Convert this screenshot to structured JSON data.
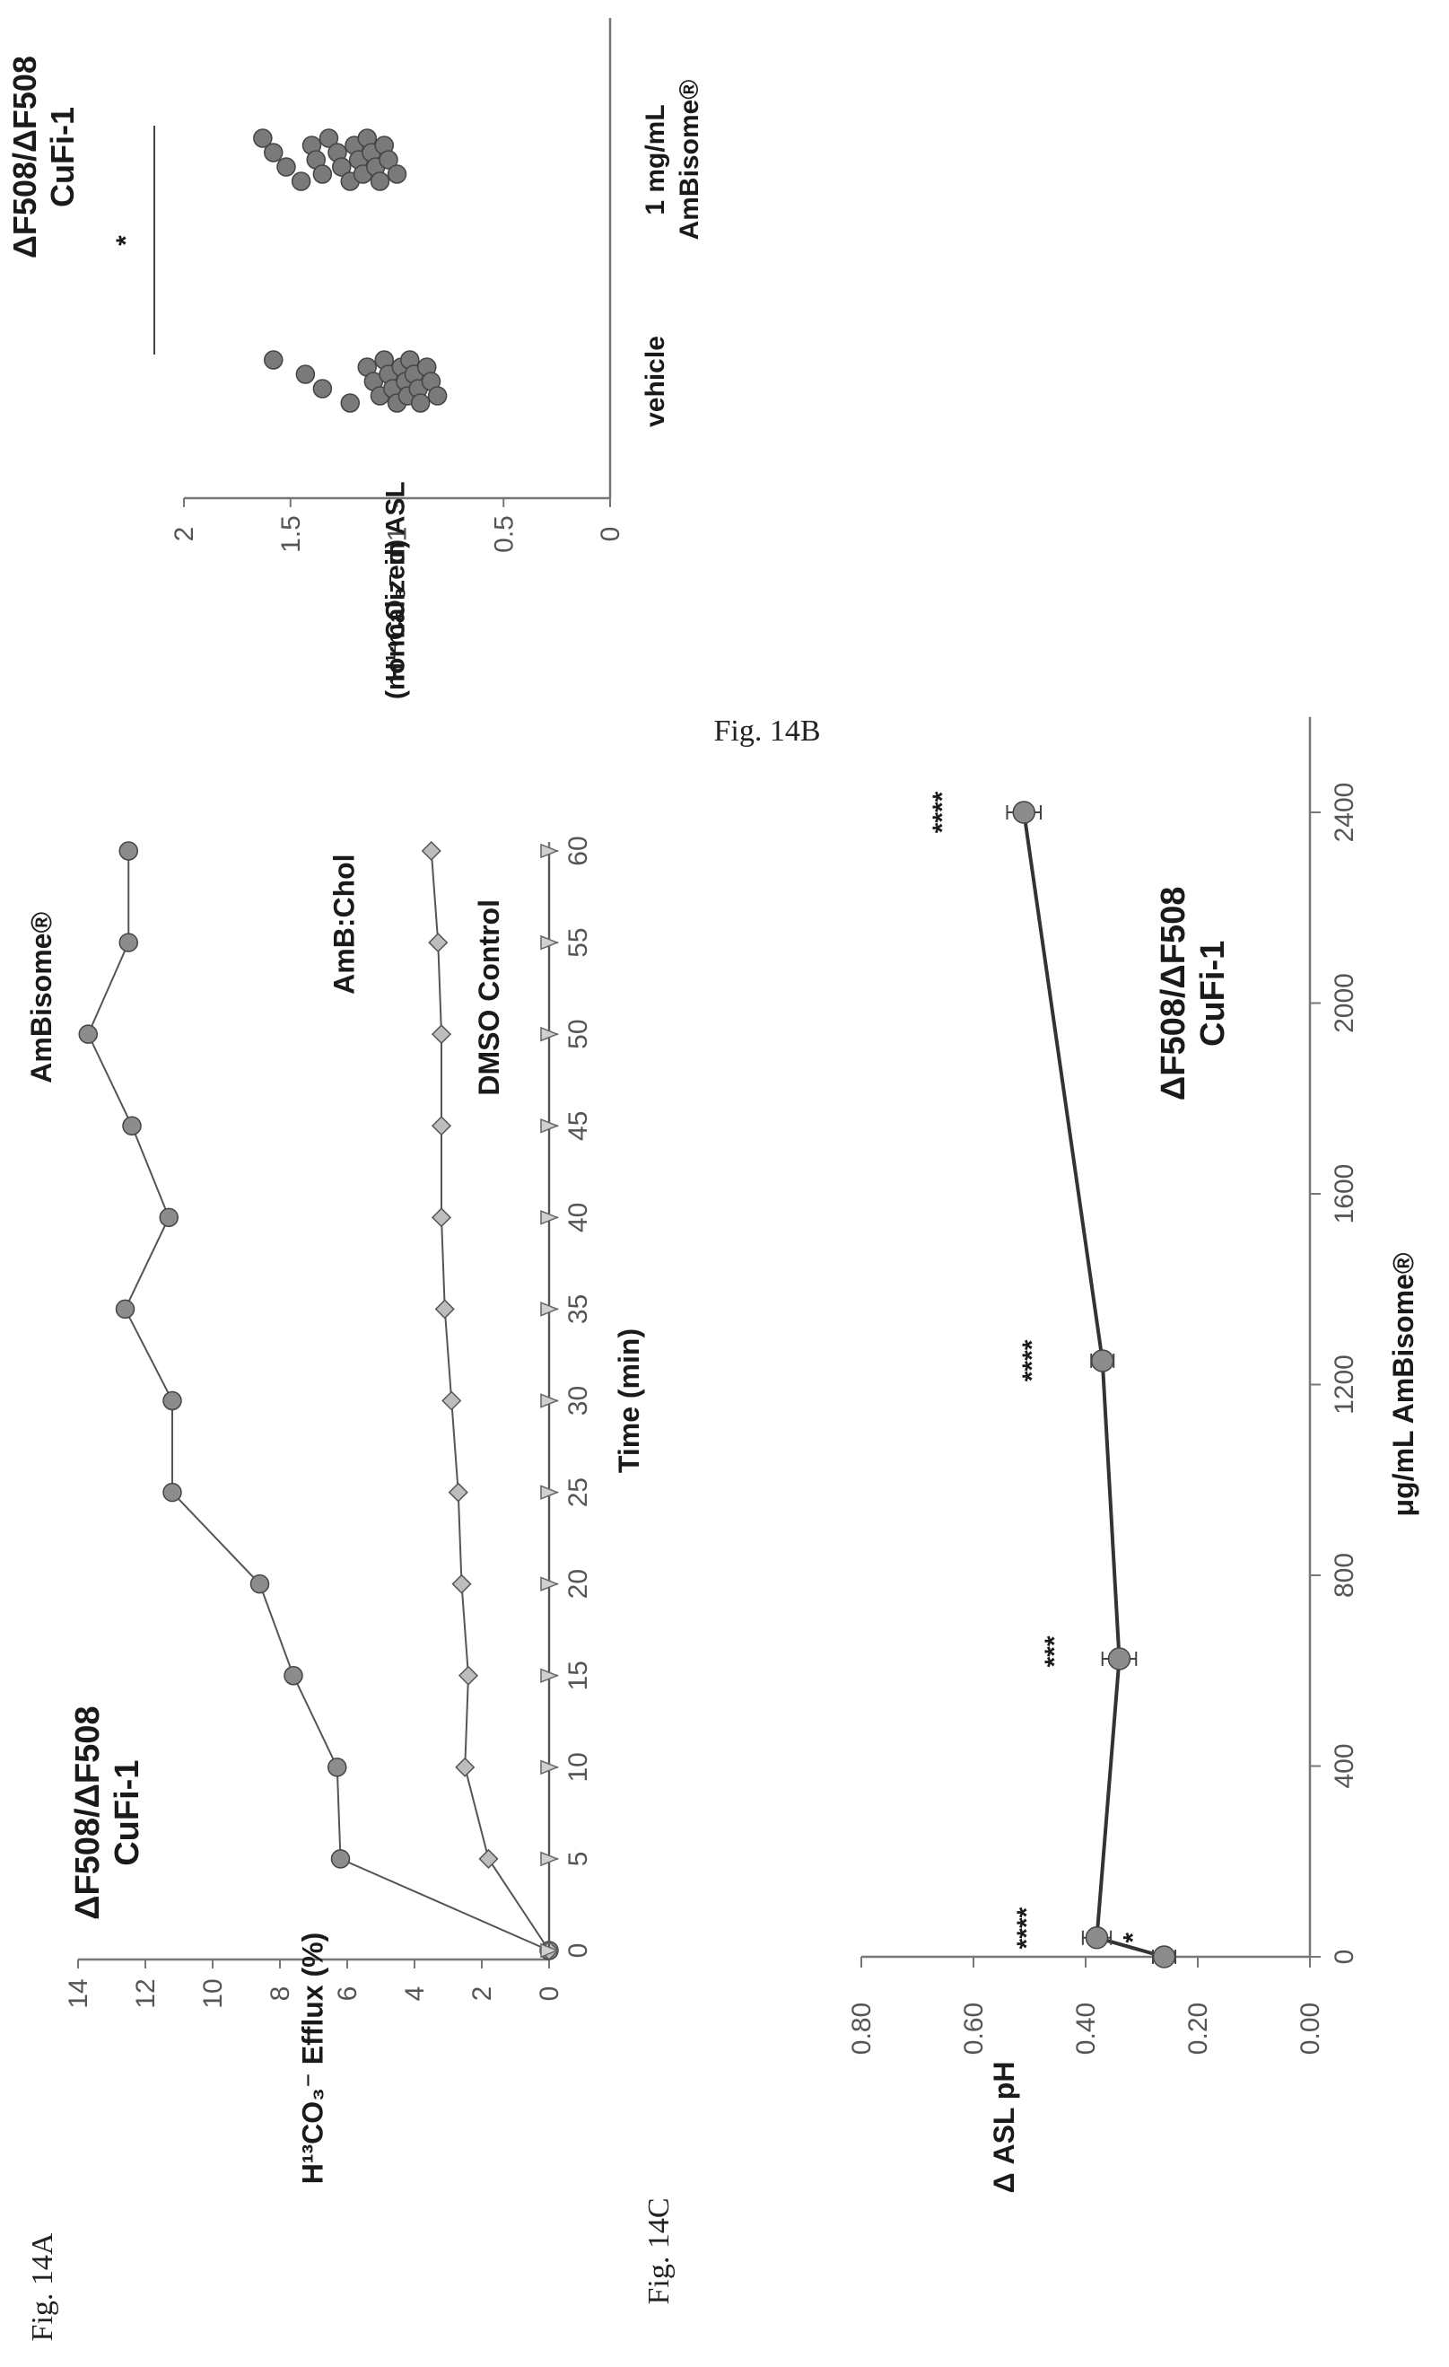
{
  "figures": {
    "a": {
      "label": "Fig. 14A"
    },
    "b": {
      "label": "Fig. 14B"
    },
    "c": {
      "label": "Fig. 14C"
    }
  },
  "chart_data": [
    {
      "id": "14A",
      "type": "line",
      "xlabel": "Time (min)",
      "ylabel": "H¹³CO₃⁻ Efflux (%)",
      "annotation_lines": [
        "ΔF508/ΔF508",
        "CuFi-1"
      ],
      "x": [
        0,
        5,
        10,
        15,
        20,
        25,
        30,
        35,
        40,
        45,
        50,
        55,
        60
      ],
      "xticks": [
        0,
        5,
        10,
        15,
        20,
        25,
        30,
        35,
        40,
        45,
        50,
        55,
        60
      ],
      "yticks": [
        0,
        2,
        4,
        6,
        8,
        10,
        12,
        14
      ],
      "xlim": [
        0,
        60
      ],
      "ylim": [
        0,
        14
      ],
      "grid": false,
      "series": [
        {
          "name": "AmBisome®",
          "marker": "circle",
          "color": "#5a5a5a",
          "values": [
            0,
            6.2,
            6.3,
            7.6,
            8.6,
            11.2,
            11.2,
            12.6,
            11.3,
            12.4,
            13.7,
            12.5,
            12.5
          ]
        },
        {
          "name": "AmB:Chol",
          "marker": "diamond",
          "color": "#8a8a8a",
          "values": [
            0,
            1.8,
            2.5,
            2.4,
            2.6,
            2.7,
            2.9,
            3.1,
            3.2,
            3.2,
            3.2,
            3.3,
            3.5
          ]
        },
        {
          "name": "DMSO Control",
          "marker": "triangle",
          "color": "#8a8a8a",
          "values": [
            0,
            0,
            0,
            0,
            0,
            0,
            0,
            0,
            0,
            0,
            0,
            0,
            0
          ]
        }
      ]
    },
    {
      "id": "14B",
      "type": "scatter",
      "ylabel": "H¹⁴CO₃⁻ in ASL",
      "ylabel2": "(normalized)",
      "title_lines": [
        "ΔF508/ΔF508",
        "CuFi-1"
      ],
      "significance": "*",
      "categories": [
        "vehicle",
        "1 mg/mL AmBisome®"
      ],
      "category_lines": [
        [
          "vehicle"
        ],
        [
          "1 mg/mL",
          "AmBisome®"
        ]
      ],
      "yticks": [
        0,
        0.5,
        1,
        1.5,
        2
      ],
      "ylim": [
        0,
        2
      ],
      "grid": false,
      "series": [
        {
          "name": "vehicle",
          "values": [
            1.58,
            1.43,
            1.35,
            1.22,
            1.14,
            1.11,
            1.08,
            1.06,
            1.04,
            1.02,
            1.0,
            0.98,
            0.96,
            0.95,
            0.94,
            0.92,
            0.9,
            0.89,
            0.86,
            0.84,
            0.81
          ]
        },
        {
          "name": "1 mg/mL AmBisome®",
          "values": [
            1.63,
            1.58,
            1.52,
            1.45,
            1.4,
            1.38,
            1.35,
            1.32,
            1.28,
            1.26,
            1.22,
            1.2,
            1.18,
            1.16,
            1.14,
            1.12,
            1.1,
            1.08,
            1.06,
            1.04,
            1.0
          ]
        }
      ]
    },
    {
      "id": "14C",
      "type": "line",
      "xlabel": "μg/mL AmBisome®",
      "ylabel": "Δ ASL pH",
      "annotation_lines": [
        "ΔF508/ΔF508",
        "CuFi-1"
      ],
      "xticks": [
        0,
        400,
        800,
        1200,
        1600,
        2000,
        2400
      ],
      "yticks": [
        0.0,
        0.2,
        0.4,
        0.6,
        0.8
      ],
      "ytick_labels": [
        "0.00",
        "0.20",
        "0.40",
        "0.60",
        "0.80"
      ],
      "xlim": [
        0,
        2600
      ],
      "ylim": [
        0,
        0.8
      ],
      "grid": false,
      "series": [
        {
          "name": "",
          "x": [
            0,
            40,
            625,
            1250,
            2400
          ],
          "values": [
            0.26,
            0.38,
            0.34,
            0.37,
            0.51
          ],
          "errors": [
            0.02,
            0.025,
            0.03,
            0.02,
            0.03
          ],
          "significance": [
            "*",
            "****",
            "***",
            "****",
            "****"
          ]
        }
      ]
    }
  ]
}
